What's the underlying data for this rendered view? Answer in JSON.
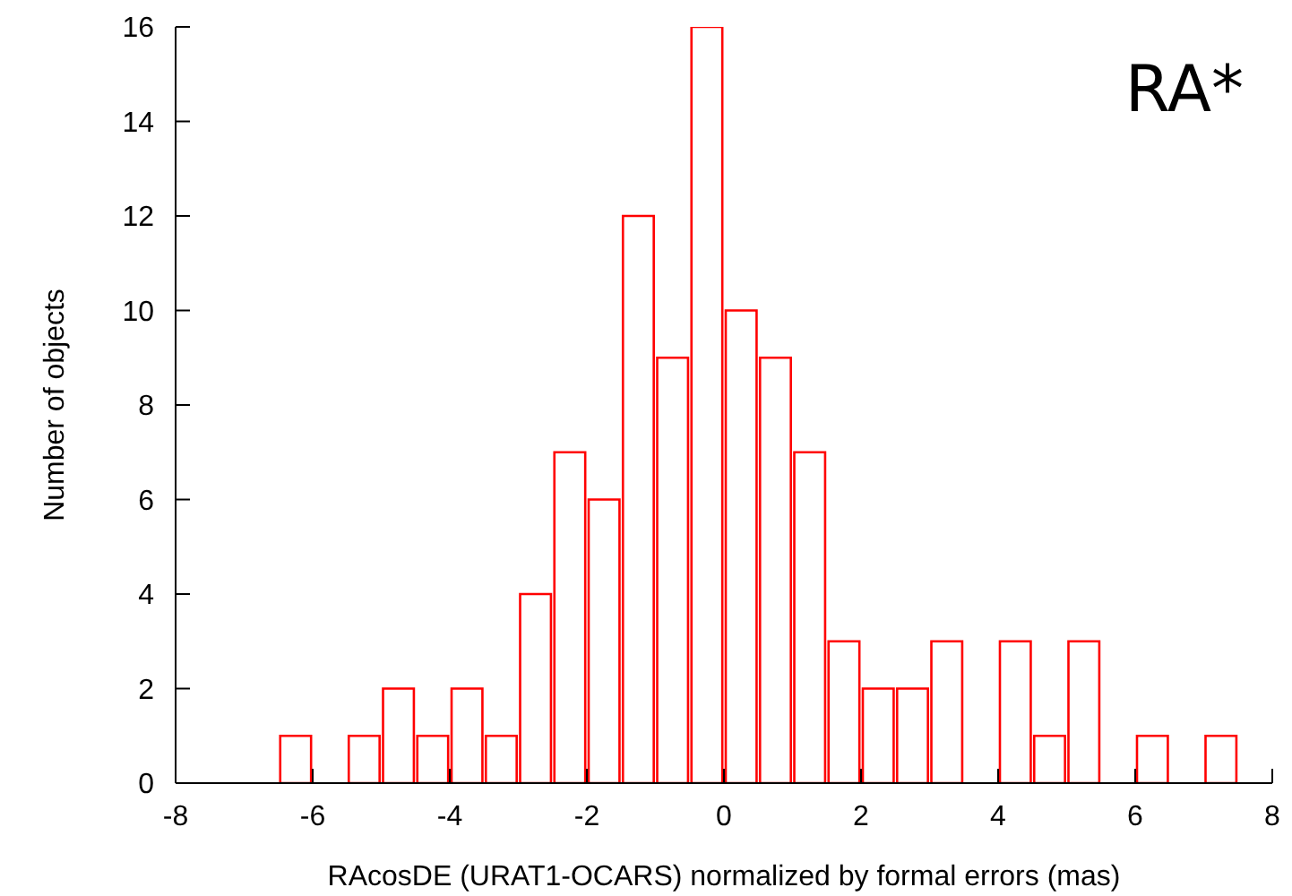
{
  "chart_data": {
    "type": "histogram",
    "xlabel": "RAcosDE (URAT1-OCARS) normalized by formal errors (mas)",
    "ylabel": "Number of objects",
    "annotations": [
      "RA*"
    ],
    "bins": [
      -6.5,
      -6,
      -5.5,
      -5,
      -4.5,
      -4,
      -3.5,
      -3,
      -2.5,
      -2,
      -1.5,
      -1,
      -0.5,
      0,
      0.5,
      1,
      1.5,
      2,
      2.5,
      3,
      3.5,
      4,
      4.5,
      5,
      5.5,
      6,
      6.5,
      7,
      7.5
    ],
    "values": [
      1,
      0,
      1,
      2,
      1,
      2,
      1,
      4,
      7,
      6,
      12,
      9,
      16,
      10,
      9,
      7,
      3,
      2,
      2,
      3,
      0,
      3,
      1,
      3,
      0,
      1,
      0,
      1
    ],
    "color": "#ff0000",
    "xlim": [
      -8,
      8
    ],
    "xticks": [
      -8,
      -6,
      -4,
      -2,
      0,
      2,
      4,
      6,
      8
    ],
    "ylim": [
      0,
      16
    ],
    "yticks": [
      0,
      2,
      4,
      6,
      8,
      10,
      12,
      14,
      16
    ]
  }
}
